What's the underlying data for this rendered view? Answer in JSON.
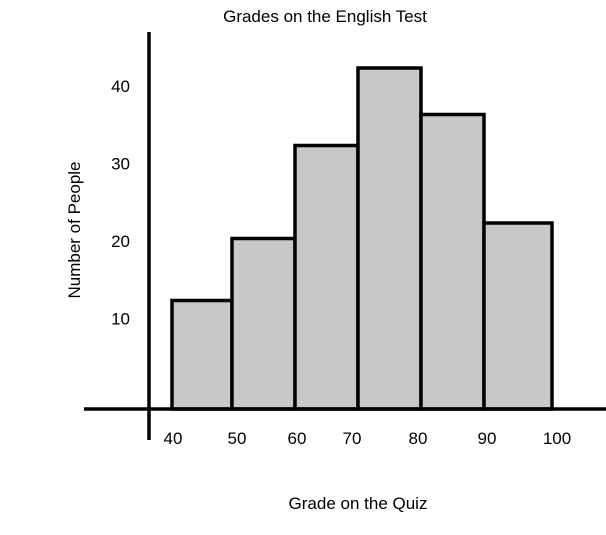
{
  "chart_data": {
    "type": "bar",
    "title": "Grades on the English Test",
    "xlabel": "Grade on the Quiz",
    "ylabel": "Number of People",
    "bins": [
      {
        "from": 40,
        "to": 50,
        "value": 14
      },
      {
        "from": 50,
        "to": 60,
        "value": 22
      },
      {
        "from": 60,
        "to": 70,
        "value": 34
      },
      {
        "from": 70,
        "to": 80,
        "value": 44
      },
      {
        "from": 80,
        "to": 90,
        "value": 38
      },
      {
        "from": 90,
        "to": 100,
        "value": 24
      }
    ],
    "x_ticks": [
      "40",
      "50",
      "60",
      "70",
      "80",
      "90",
      "100"
    ],
    "y_ticks": [
      "10",
      "20",
      "30",
      "40"
    ],
    "ylim": [
      0,
      48
    ],
    "grid": false,
    "legend": "none",
    "colors": {
      "bar_fill": "#c8c8c8",
      "bar_stroke": "#000000",
      "axis": "#000000"
    }
  }
}
